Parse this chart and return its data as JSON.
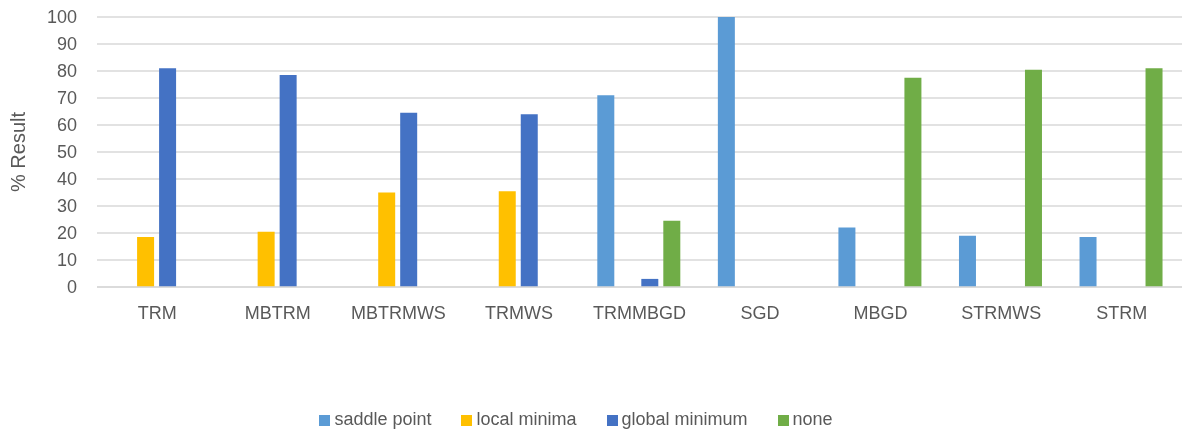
{
  "chart_data": {
    "type": "bar",
    "ylabel": "% Result",
    "categories": [
      "TRM",
      "MBTRM",
      "MBTRMWS",
      "TRMWS",
      "TRMMBGD",
      "SGD",
      "MBGD",
      "STRMWS",
      "STRM"
    ],
    "series": [
      {
        "name": "saddle point",
        "color": "#5b9bd5",
        "values": [
          null,
          null,
          null,
          null,
          71,
          100,
          22,
          19,
          18.5
        ]
      },
      {
        "name": "local minima",
        "color": "#ffc000",
        "values": [
          18.5,
          20.5,
          35,
          35.5,
          null,
          null,
          null,
          null,
          null
        ]
      },
      {
        "name": "global minimum",
        "color": "#4472c4",
        "values": [
          81,
          78.5,
          64.5,
          64,
          3,
          null,
          null,
          null,
          null
        ]
      },
      {
        "name": "none",
        "color": "#70ad47",
        "values": [
          null,
          null,
          null,
          null,
          24.5,
          null,
          77.5,
          80.5,
          81
        ]
      }
    ],
    "ylim": [
      0,
      100
    ],
    "yticks": [
      0,
      10,
      20,
      30,
      40,
      50,
      60,
      70,
      80,
      90,
      100
    ],
    "grid": "y",
    "legend": "bottom"
  }
}
